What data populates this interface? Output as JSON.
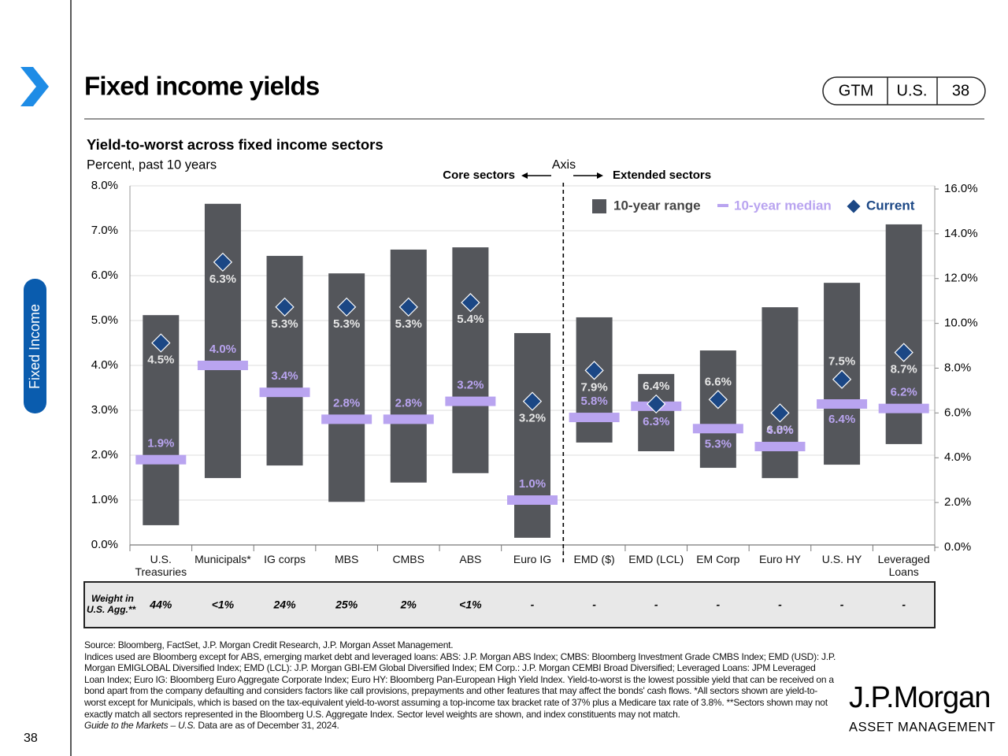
{
  "header": {
    "title": "Fixed income yields",
    "badge": [
      "GTM",
      "U.S.",
      "38"
    ]
  },
  "side_tab": "Fixed Income",
  "page_number": "38",
  "chart_data": {
    "type": "range",
    "title": "Yield-to-worst across fixed income sectors",
    "subtitle": "Percent, past 10 years",
    "core_label": "Core sectors",
    "extended_label": "Extended sectors",
    "divider_label": "Axis",
    "categories": [
      "U.S. Treasuries",
      "Municipals*",
      "IG corps",
      "MBS",
      "CMBS",
      "ABS",
      "Euro IG",
      "EMD ($)",
      "EMD (LCL)",
      "EM Corp",
      "Euro HY",
      "U.S. HY",
      "Leveraged Loans"
    ],
    "axes": [
      "y",
      "y",
      "y",
      "y",
      "y",
      "y",
      "y",
      "y2",
      "y2",
      "y2",
      "y2",
      "y2",
      "y2"
    ],
    "series": [
      {
        "name": "10-year range",
        "color": "#54565b",
        "low": [
          0.44,
          1.49,
          1.77,
          0.96,
          1.39,
          1.6,
          0.16,
          4.68,
          4.29,
          3.55,
          3.09,
          3.69,
          4.61
        ],
        "high": [
          5.12,
          7.6,
          6.44,
          6.05,
          6.58,
          6.63,
          4.72,
          10.27,
          7.74,
          8.79,
          10.72,
          11.81,
          14.42
        ]
      },
      {
        "name": "10-year median",
        "color": "#b9a4f0",
        "values": [
          1.9,
          4.0,
          3.4,
          2.8,
          2.8,
          3.2,
          1.0,
          5.8,
          6.3,
          5.3,
          4.5,
          6.4,
          6.2
        ],
        "value_labels": [
          "1.9%",
          "4.0%",
          "3.4%",
          "2.8%",
          "2.8%",
          "3.2%",
          "1.0%",
          "5.8%",
          "6.3%",
          "5.3%",
          "4.5%",
          "6.4%",
          "6.2%"
        ]
      },
      {
        "name": "Current",
        "color": "#1b4785",
        "values": [
          4.5,
          6.3,
          5.3,
          5.3,
          5.3,
          5.4,
          3.2,
          7.9,
          6.4,
          6.6,
          6.0,
          7.5,
          8.7
        ],
        "value_labels": [
          "4.5%",
          "6.3%",
          "5.3%",
          "5.3%",
          "5.3%",
          "5.4%",
          "3.2%",
          "7.9%",
          "6.4%",
          "6.6%",
          "6.0%",
          "7.5%",
          "8.7%"
        ]
      }
    ],
    "ylim": [
      0,
      8
    ],
    "yticks": [
      {
        "value": 0,
        "label": "0.0%"
      },
      {
        "value": 1,
        "label": "1.0%"
      },
      {
        "value": 2,
        "label": "2.0%"
      },
      {
        "value": 3,
        "label": "3.0%"
      },
      {
        "value": 4,
        "label": "4.0%"
      },
      {
        "value": 5,
        "label": "5.0%"
      },
      {
        "value": 6,
        "label": "6.0%"
      },
      {
        "value": 7,
        "label": "7.0%"
      },
      {
        "value": 8,
        "label": "8.0%"
      }
    ],
    "y2lim": [
      0,
      16
    ],
    "y2ticks": [
      {
        "value": 0,
        "label": "0.0%"
      },
      {
        "value": 2,
        "label": "2.0%"
      },
      {
        "value": 4,
        "label": "4.0%"
      },
      {
        "value": 6,
        "label": "6.0%"
      },
      {
        "value": 8,
        "label": "8.0%"
      },
      {
        "value": 10,
        "label": "10.0%"
      },
      {
        "value": 12,
        "label": "12.0%"
      },
      {
        "value": 14,
        "label": "14.0%"
      },
      {
        "value": 16,
        "label": "16.0%"
      }
    ],
    "grid": true,
    "legend": "top-right"
  },
  "weights_table": {
    "label": "Weight in U.S. Agg.**",
    "values": [
      "44%",
      "<1%",
      "24%",
      "25%",
      "2%",
      "<1%",
      "-",
      "-",
      "-",
      "-",
      "-",
      "-",
      "-"
    ]
  },
  "footnotes": {
    "source": "Source: Bloomberg, FactSet, J.P. Morgan Credit Research, J.P. Morgan Asset Management.",
    "note": "Indices used are Bloomberg except for ABS, emerging market debt and leveraged loans: ABS: J.P. Morgan ABS Index; CMBS: Bloomberg Investment Grade CMBS Index; EMD (USD): J.P. Morgan EMIGLOBAL Diversified Index; EMD (LCL): J.P. Morgan GBI-EM Global Diversified Index; EM Corp.: J.P. Morgan CEMBI Broad Diversified; Leveraged Loans: JPM Leveraged Loan Index; Euro IG: Bloomberg Euro Aggregate Corporate Index; Euro HY: Bloomberg Pan-European High Yield Index. Yield-to-worst is the lowest possible yield that can be received on a bond apart from the company defaulting and considers factors like call provisions, prepayments and other features that may affect the bonds' cash flows. *All sectors shown are yield-to-worst except for Municipals, which is based on the tax-equivalent yield-to-worst assuming a top-income tax bracket rate of 37% plus a Medicare tax rate of 3.8%. **Sectors shown may not exactly match all sectors represented in the Bloomberg U.S. Aggregate Index. Sector level weights are shown, and index constituents may not match.",
    "guide": "Guide to the Markets – U.S.",
    "date": "Data are as of December 31, 2024."
  },
  "logo": {
    "name": "J.P.Morgan",
    "sub": "ASSET MANAGEMENT"
  }
}
